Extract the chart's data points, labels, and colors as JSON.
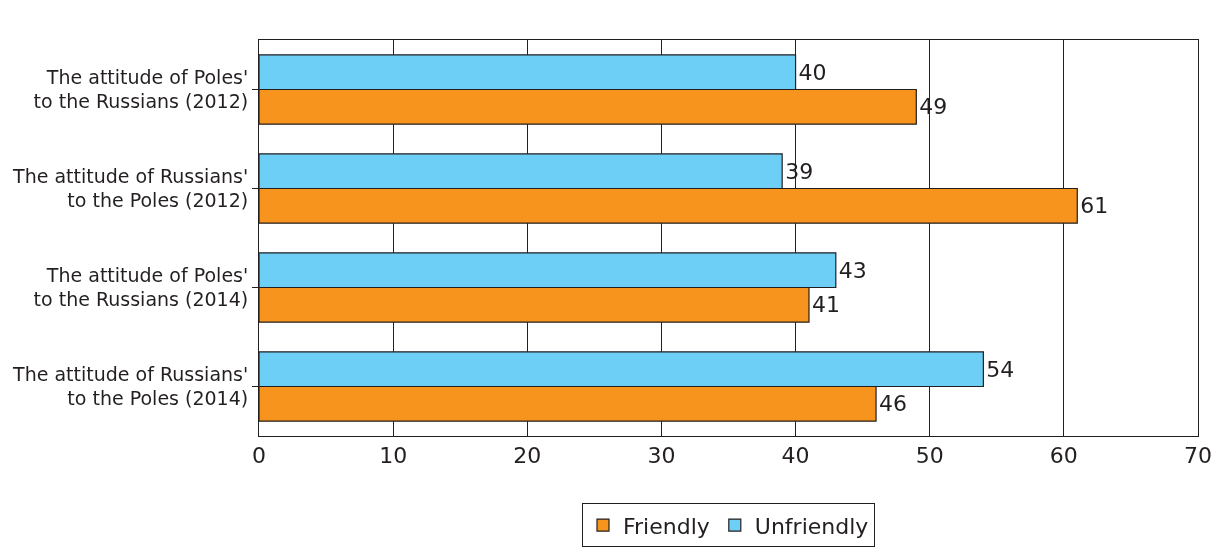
{
  "chart_data": {
    "type": "bar",
    "orientation": "horizontal",
    "categories": [
      "The attitude of Poles' to the Russians (2012)",
      "The attitude of Russians' to the Poles (2012)",
      "The attitude of Poles' to the Russians (2014)",
      "The attitude of Russians' to the Poles (2014)"
    ],
    "series": [
      {
        "name": "Friendly",
        "color": "#f7941d",
        "values": [
          49,
          61,
          41,
          46
        ]
      },
      {
        "name": "Unfriendly",
        "color": "#6dcff6",
        "values": [
          40,
          39,
          43,
          54
        ]
      }
    ],
    "xlim": [
      0,
      70
    ],
    "xticks": [
      0,
      10,
      20,
      30,
      40,
      50,
      60,
      70
    ],
    "grid": "x",
    "legend": "bottom",
    "data_labels": true
  }
}
